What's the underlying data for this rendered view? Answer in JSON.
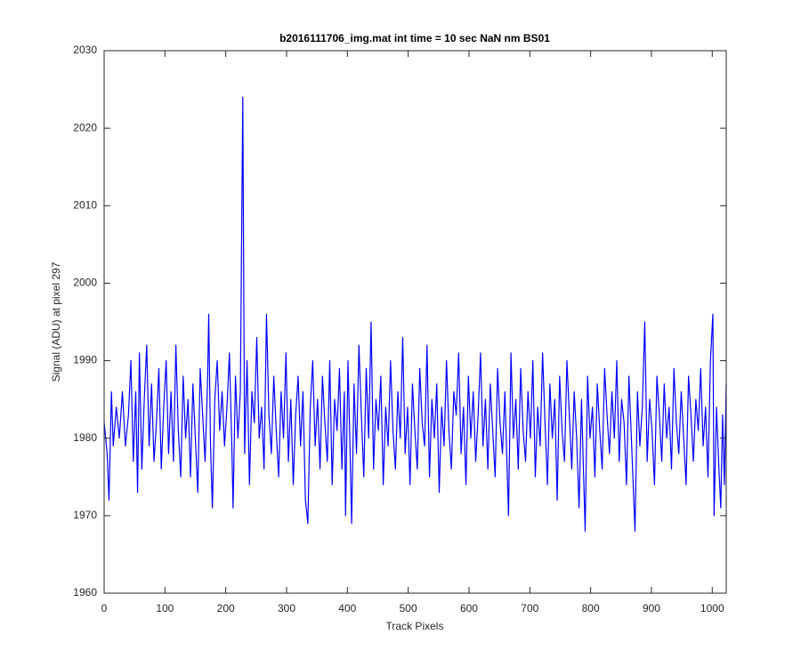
{
  "chart_data": {
    "type": "line",
    "title": "b2016111706_img.mat int time = 10 sec  NaN nm BS01",
    "x_label": "Track Pixels",
    "y_label": "Signal (ADU) at pixel 297",
    "xlim": [
      0,
      1023
    ],
    "ylim": [
      1960,
      2030
    ],
    "xticks": [
      0,
      100,
      200,
      300,
      400,
      500,
      600,
      700,
      800,
      900,
      1000
    ],
    "yticks": [
      1960,
      1970,
      1980,
      1990,
      2000,
      2010,
      2020,
      2030
    ],
    "grid": false,
    "x": [
      0,
      5,
      8,
      12,
      15,
      20,
      25,
      30,
      35,
      40,
      44,
      48,
      52,
      55,
      58,
      62,
      66,
      70,
      74,
      78,
      82,
      86,
      90,
      94,
      98,
      102,
      106,
      110,
      114,
      118,
      122,
      126,
      130,
      134,
      138,
      142,
      146,
      150,
      154,
      158,
      162,
      166,
      170,
      172,
      175,
      178,
      182,
      186,
      190,
      194,
      198,
      202,
      206,
      210,
      212,
      216,
      220,
      224,
      228,
      231,
      235,
      239,
      243,
      247,
      251,
      255,
      259,
      263,
      267,
      271,
      275,
      279,
      283,
      287,
      291,
      295,
      299,
      303,
      307,
      311,
      315,
      319,
      323,
      327,
      331,
      335,
      339,
      343,
      347,
      351,
      355,
      359,
      363,
      367,
      371,
      375,
      379,
      383,
      387,
      391,
      395,
      397,
      401,
      404,
      407,
      411,
      415,
      419,
      423,
      427,
      431,
      435,
      439,
      443,
      447,
      451,
      455,
      459,
      463,
      467,
      471,
      475,
      479,
      483,
      487,
      491,
      495,
      499,
      503,
      507,
      511,
      515,
      519,
      523,
      527,
      531,
      535,
      539,
      543,
      547,
      551,
      555,
      559,
      563,
      567,
      571,
      575,
      579,
      583,
      587,
      591,
      595,
      599,
      603,
      607,
      611,
      615,
      619,
      623,
      627,
      631,
      635,
      639,
      643,
      647,
      651,
      655,
      659,
      665,
      669,
      673,
      677,
      681,
      685,
      689,
      693,
      697,
      701,
      705,
      709,
      713,
      717,
      721,
      725,
      729,
      733,
      737,
      741,
      745,
      749,
      753,
      757,
      761,
      765,
      769,
      773,
      777,
      781,
      785,
      791,
      795,
      799,
      803,
      807,
      811,
      815,
      819,
      823,
      827,
      831,
      835,
      839,
      843,
      847,
      851,
      855,
      859,
      863,
      867,
      873,
      877,
      881,
      885,
      889,
      893,
      897,
      901,
      905,
      909,
      913,
      917,
      921,
      925,
      929,
      933,
      937,
      941,
      945,
      949,
      953,
      957,
      961,
      965,
      969,
      973,
      977,
      981,
      985,
      989,
      993,
      997,
      1001,
      1003,
      1007,
      1011,
      1014,
      1017,
      1020,
      1023
    ],
    "series": [
      {
        "name": "signal",
        "color": "#0000ff",
        "values": [
          1982,
          1978,
          1972,
          1986,
          1979,
          1984,
          1980,
          1986,
          1979,
          1983,
          1990,
          1977,
          1986,
          1973,
          1991,
          1976,
          1985,
          1992,
          1979,
          1987,
          1977,
          1982,
          1989,
          1976,
          1984,
          1990,
          1978,
          1986,
          1977,
          1992,
          1981,
          1975,
          1988,
          1980,
          1985,
          1975,
          1987,
          1980,
          1973,
          1989,
          1983,
          1977,
          1987,
          1996,
          1979,
          1971,
          1985,
          1990,
          1981,
          1986,
          1979,
          1984,
          1991,
          1979,
          1971,
          1988,
          1980,
          1986,
          2024,
          1978,
          1990,
          1974,
          1986,
          1982,
          1993,
          1980,
          1984,
          1976,
          1996,
          1983,
          1978,
          1988,
          1981,
          1975,
          1986,
          1980,
          1991,
          1977,
          1985,
          1974,
          1983,
          1988,
          1979,
          1986,
          1972,
          1969,
          1984,
          1990,
          1979,
          1985,
          1976,
          1988,
          1982,
          1977,
          1990,
          1974,
          1985,
          1981,
          1989,
          1976,
          1986,
          1970,
          1990,
          1980,
          1969,
          1987,
          1978,
          1992,
          1983,
          1975,
          1989,
          1980,
          1995,
          1976,
          1985,
          1981,
          1988,
          1974,
          1984,
          1979,
          1990,
          1981,
          1976,
          1986,
          1980,
          1993,
          1978,
          1984,
          1974,
          1987,
          1981,
          1976,
          1989,
          1982,
          1979,
          1992,
          1975,
          1985,
          1980,
          1987,
          1973,
          1984,
          1979,
          1990,
          1981,
          1976,
          1986,
          1983,
          1991,
          1978,
          1984,
          1974,
          1988,
          1980,
          1986,
          1977,
          1983,
          1991,
          1979,
          1985,
          1976,
          1987,
          1981,
          1975,
          1989,
          1982,
          1978,
          1986,
          1970,
          1991,
          1980,
          1985,
          1976,
          1989,
          1981,
          1977,
          1986,
          1980,
          1990,
          1975,
          1984,
          1979,
          1991,
          1982,
          1974,
          1987,
          1980,
          1985,
          1972,
          1988,
          1981,
          1977,
          1990,
          1983,
          1976,
          1986,
          1980,
          1971,
          1985,
          1968,
          1988,
          1980,
          1984,
          1975,
          1987,
          1981,
          1976,
          1989,
          1983,
          1978,
          1986,
          1980,
          1990,
          1977,
          1985,
          1982,
          1974,
          1988,
          1980,
          1968,
          1986,
          1979,
          1984,
          1995,
          1977,
          1985,
          1981,
          1974,
          1988,
          1983,
          1977,
          1987,
          1980,
          1984,
          1976,
          1989,
          1982,
          1978,
          1986,
          1980,
          1974,
          1988,
          1983,
          1977,
          1985,
          1981,
          1989,
          1979,
          1984,
          1975,
          1990,
          1996,
          1970,
          1984,
          1976,
          1971,
          1983,
          1974,
          1987
        ]
      }
    ]
  }
}
